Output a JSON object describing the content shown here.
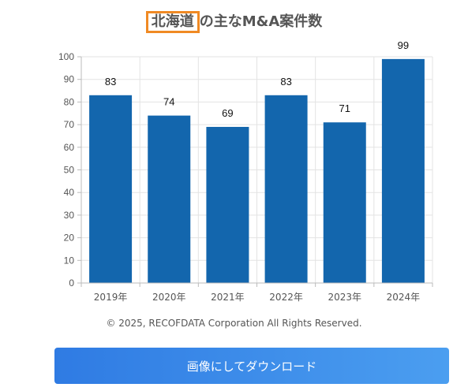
{
  "header": {
    "title_highlight": "北海道",
    "title_rest": "の主なM&A案件数"
  },
  "chart_data": {
    "type": "bar",
    "categories": [
      "2019年",
      "2020年",
      "2021年",
      "2022年",
      "2023年",
      "2024年"
    ],
    "values": [
      83,
      74,
      69,
      83,
      71,
      99
    ],
    "ylim": [
      0,
      100
    ],
    "yticks": [
      0,
      10,
      20,
      30,
      40,
      50,
      60,
      70,
      80,
      90,
      100
    ],
    "grid": true,
    "bar_color": "#1366ad"
  },
  "footer": {
    "copyright": "© 2025, RECOFDATA Corporation All Rights Reserved.",
    "download_label": "画像にしてダウンロード"
  },
  "colors": {
    "highlight_border": "#f08a24",
    "button_start": "#2f7be3",
    "button_end": "#4b9ef0"
  }
}
